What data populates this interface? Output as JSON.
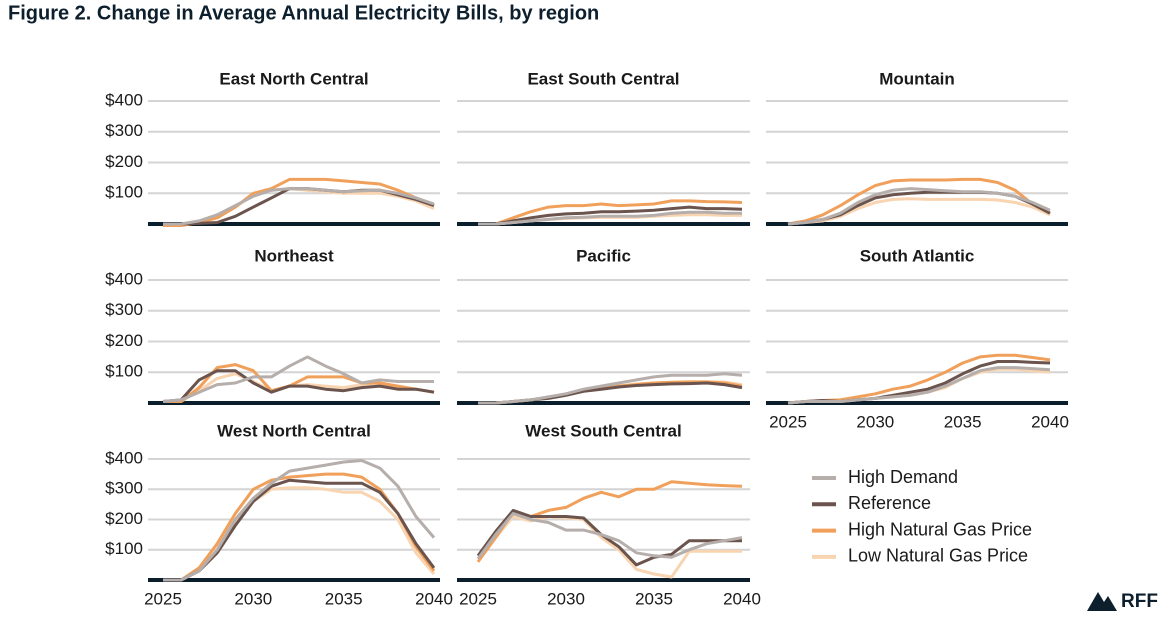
{
  "title": "Figure 2. Change in Average Annual Electricity Bills, by region",
  "logo": "RFF",
  "chart_data": [
    {
      "type": "line",
      "title": "East North Central",
      "x": [
        2025,
        2026,
        2027,
        2028,
        2029,
        2030,
        2031,
        2032,
        2033,
        2034,
        2035,
        2036,
        2037,
        2038,
        2039,
        2040
      ],
      "xlim": [
        2025,
        2040
      ],
      "ylim": [
        0,
        400
      ],
      "yticks": [
        {
          "value": 100,
          "label": "$100"
        },
        {
          "value": 200,
          "label": "$200"
        },
        {
          "value": 300,
          "label": "$300"
        },
        {
          "value": 400,
          "label": "$400"
        }
      ],
      "grid": true,
      "series": [
        {
          "name": "High Demand",
          "color": "#b5aeab",
          "values": [
            0,
            0,
            10,
            30,
            60,
            90,
            110,
            115,
            115,
            110,
            105,
            108,
            110,
            100,
            85,
            65
          ]
        },
        {
          "name": "Reference",
          "color": "#6b544d",
          "values": [
            0,
            0,
            2,
            5,
            25,
            55,
            85,
            115,
            115,
            110,
            105,
            110,
            110,
            95,
            80,
            60
          ]
        },
        {
          "name": "High Natural Gas Price",
          "color": "#f0a05a",
          "values": [
            -5,
            -5,
            5,
            20,
            55,
            100,
            115,
            145,
            145,
            145,
            140,
            135,
            130,
            110,
            85,
            60
          ]
        },
        {
          "name": "Low Natural Gas Price",
          "color": "#f8d4b0",
          "values": [
            0,
            0,
            5,
            20,
            55,
            95,
            110,
            115,
            110,
            105,
            100,
            100,
            100,
            90,
            75,
            50
          ]
        }
      ]
    },
    {
      "type": "line",
      "title": "East South Central",
      "x": [
        2025,
        2026,
        2027,
        2028,
        2029,
        2030,
        2031,
        2032,
        2033,
        2034,
        2035,
        2036,
        2037,
        2038,
        2039,
        2040
      ],
      "xlim": [
        2025,
        2040
      ],
      "ylim": [
        0,
        400
      ],
      "yticks": [
        100,
        200,
        300,
        400
      ],
      "grid": true,
      "series": [
        {
          "name": "High Demand",
          "color": "#b5aeab",
          "values": [
            0,
            0,
            5,
            10,
            15,
            20,
            22,
            25,
            25,
            25,
            28,
            35,
            38,
            38,
            35,
            35
          ]
        },
        {
          "name": "Reference",
          "color": "#6b544d",
          "values": [
            0,
            0,
            10,
            20,
            28,
            33,
            35,
            40,
            40,
            42,
            45,
            50,
            55,
            50,
            50,
            48
          ]
        },
        {
          "name": "High Natural Gas Price",
          "color": "#f0a05a",
          "values": [
            0,
            0,
            20,
            40,
            55,
            60,
            60,
            65,
            60,
            62,
            65,
            75,
            75,
            73,
            72,
            70
          ]
        },
        {
          "name": "Low Natural Gas Price",
          "color": "#f8d4b0",
          "values": [
            0,
            0,
            5,
            10,
            15,
            18,
            20,
            22,
            22,
            22,
            25,
            28,
            30,
            30,
            28,
            28
          ]
        }
      ]
    },
    {
      "type": "line",
      "title": "Mountain",
      "x": [
        2025,
        2026,
        2027,
        2028,
        2029,
        2030,
        2031,
        2032,
        2033,
        2034,
        2035,
        2036,
        2037,
        2038,
        2039,
        2040
      ],
      "xlim": [
        2025,
        2040
      ],
      "ylim": [
        0,
        400
      ],
      "yticks": [
        100,
        200,
        300,
        400
      ],
      "grid": true,
      "series": [
        {
          "name": "High Demand",
          "color": "#b5aeab",
          "values": [
            0,
            5,
            15,
            35,
            70,
            95,
            110,
            115,
            112,
            108,
            105,
            105,
            100,
            90,
            70,
            45
          ]
        },
        {
          "name": "Reference",
          "color": "#6b544d",
          "values": [
            0,
            5,
            15,
            30,
            60,
            85,
            95,
            100,
            103,
            103,
            103,
            103,
            100,
            90,
            65,
            35
          ]
        },
        {
          "name": "High Natural Gas Price",
          "color": "#f0a05a",
          "values": [
            0,
            10,
            30,
            60,
            95,
            125,
            140,
            143,
            143,
            143,
            145,
            145,
            135,
            110,
            65,
            35
          ]
        },
        {
          "name": "Low Natural Gas Price",
          "color": "#f8d4b0",
          "values": [
            0,
            5,
            10,
            25,
            50,
            70,
            80,
            82,
            80,
            80,
            80,
            80,
            78,
            70,
            55,
            30
          ]
        }
      ]
    },
    {
      "type": "line",
      "title": "Northeast",
      "x": [
        2025,
        2026,
        2027,
        2028,
        2029,
        2030,
        2031,
        2032,
        2033,
        2034,
        2035,
        2036,
        2037,
        2038,
        2039,
        2040
      ],
      "xlim": [
        2025,
        2040
      ],
      "ylim": [
        0,
        400
      ],
      "yticks": [
        {
          "value": 100,
          "label": "$100"
        },
        {
          "value": 200,
          "label": "$200"
        },
        {
          "value": 300,
          "label": "$300"
        },
        {
          "value": 400,
          "label": "$400"
        }
      ],
      "grid": true,
      "series": [
        {
          "name": "High Demand",
          "color": "#b5aeab",
          "values": [
            5,
            10,
            35,
            60,
            65,
            85,
            85,
            120,
            150,
            120,
            95,
            65,
            75,
            70,
            70,
            70
          ]
        },
        {
          "name": "Reference",
          "color": "#6b544d",
          "values": [
            5,
            10,
            75,
            105,
            105,
            65,
            35,
            55,
            55,
            45,
            40,
            50,
            55,
            45,
            45,
            35
          ]
        },
        {
          "name": "High Natural Gas Price",
          "color": "#f0a05a",
          "values": [
            5,
            5,
            50,
            115,
            125,
            105,
            40,
            55,
            85,
            85,
            85,
            65,
            65,
            55,
            45,
            35
          ]
        },
        {
          "name": "Low Natural Gas Price",
          "color": "#f8d4b0",
          "values": [
            5,
            5,
            40,
            80,
            95,
            70,
            40,
            55,
            60,
            55,
            50,
            60,
            60,
            50,
            45,
            35
          ]
        }
      ]
    },
    {
      "type": "line",
      "title": "Pacific",
      "x": [
        2025,
        2026,
        2027,
        2028,
        2029,
        2030,
        2031,
        2032,
        2033,
        2034,
        2035,
        2036,
        2037,
        2038,
        2039,
        2040
      ],
      "xlim": [
        2025,
        2040
      ],
      "ylim": [
        0,
        400
      ],
      "yticks": [
        100,
        200,
        300,
        400
      ],
      "grid": true,
      "series": [
        {
          "name": "High Demand",
          "color": "#b5aeab",
          "values": [
            0,
            0,
            5,
            10,
            20,
            30,
            45,
            55,
            65,
            75,
            85,
            90,
            90,
            90,
            95,
            90
          ]
        },
        {
          "name": "Reference",
          "color": "#6b544d",
          "values": [
            0,
            0,
            5,
            10,
            15,
            25,
            38,
            45,
            52,
            57,
            60,
            62,
            63,
            65,
            60,
            50
          ]
        },
        {
          "name": "High Natural Gas Price",
          "color": "#f0a05a",
          "values": [
            0,
            0,
            5,
            10,
            18,
            30,
            40,
            50,
            55,
            60,
            65,
            67,
            68,
            68,
            65,
            55
          ]
        },
        {
          "name": "Low Natural Gas Price",
          "color": "#f8d4b0",
          "values": [
            0,
            0,
            5,
            10,
            18,
            28,
            40,
            48,
            55,
            62,
            65,
            68,
            70,
            70,
            68,
            60
          ]
        }
      ]
    },
    {
      "type": "line",
      "title": "South Atlantic",
      "x": [
        2025,
        2026,
        2027,
        2028,
        2029,
        2030,
        2031,
        2032,
        2033,
        2034,
        2035,
        2036,
        2037,
        2038,
        2039,
        2040
      ],
      "xlim": [
        2025,
        2040
      ],
      "ylim": [
        0,
        400
      ],
      "xticks": [
        2025,
        2030,
        2035,
        2040
      ],
      "yticks": [
        100,
        200,
        300,
        400
      ],
      "grid": true,
      "series": [
        {
          "name": "High Demand",
          "color": "#b5aeab",
          "values": [
            0,
            5,
            5,
            5,
            10,
            15,
            20,
            25,
            35,
            55,
            80,
            105,
            115,
            115,
            112,
            108
          ]
        },
        {
          "name": "Reference",
          "color": "#6b544d",
          "values": [
            0,
            5,
            8,
            5,
            10,
            15,
            25,
            35,
            45,
            65,
            95,
            120,
            135,
            135,
            132,
            130
          ]
        },
        {
          "name": "High Natural Gas Price",
          "color": "#f0a05a",
          "values": [
            0,
            5,
            8,
            10,
            20,
            30,
            45,
            55,
            75,
            100,
            130,
            150,
            155,
            155,
            148,
            140
          ]
        },
        {
          "name": "Low Natural Gas Price",
          "color": "#f8d4b0",
          "values": [
            0,
            5,
            5,
            5,
            10,
            15,
            20,
            25,
            35,
            50,
            80,
            100,
            110,
            110,
            105,
            100
          ]
        }
      ]
    },
    {
      "type": "line",
      "title": "West North Central",
      "x": [
        2025,
        2026,
        2027,
        2028,
        2029,
        2030,
        2031,
        2032,
        2033,
        2034,
        2035,
        2036,
        2037,
        2038,
        2039,
        2040
      ],
      "xlim": [
        2025,
        2040
      ],
      "ylim": [
        0,
        400
      ],
      "xticks": [
        2025,
        2030,
        2035,
        2040
      ],
      "yticks": [
        {
          "value": 100,
          "label": "$100"
        },
        {
          "value": 200,
          "label": "$200"
        },
        {
          "value": 300,
          "label": "$300"
        },
        {
          "value": 400,
          "label": "$400"
        }
      ],
      "grid": true,
      "series": [
        {
          "name": "High Demand",
          "color": "#b5aeab",
          "values": [
            0,
            0,
            30,
            100,
            200,
            270,
            320,
            360,
            370,
            380,
            390,
            395,
            370,
            310,
            210,
            140
          ]
        },
        {
          "name": "Reference",
          "color": "#6b544d",
          "values": [
            0,
            0,
            30,
            90,
            180,
            260,
            310,
            330,
            325,
            320,
            320,
            320,
            290,
            220,
            120,
            40
          ]
        },
        {
          "name": "High Natural Gas Price",
          "color": "#f0a05a",
          "values": [
            0,
            0,
            40,
            120,
            220,
            300,
            330,
            340,
            345,
            350,
            350,
            340,
            300,
            220,
            110,
            30
          ]
        },
        {
          "name": "Low Natural Gas Price",
          "color": "#f8d4b0",
          "values": [
            0,
            0,
            30,
            100,
            190,
            260,
            300,
            305,
            305,
            300,
            290,
            290,
            260,
            200,
            90,
            20
          ]
        }
      ]
    },
    {
      "type": "line",
      "title": "West South Central",
      "x": [
        2025,
        2026,
        2027,
        2028,
        2029,
        2030,
        2031,
        2032,
        2033,
        2034,
        2035,
        2036,
        2037,
        2038,
        2039,
        2040
      ],
      "xlim": [
        2025,
        2040
      ],
      "ylim": [
        0,
        400
      ],
      "xticks": [
        2025,
        2030,
        2035,
        2040
      ],
      "yticks": [
        100,
        200,
        300,
        400
      ],
      "grid": true,
      "series": [
        {
          "name": "High Demand",
          "color": "#b5aeab",
          "values": [
            70,
            150,
            220,
            200,
            190,
            165,
            165,
            150,
            130,
            90,
            80,
            75,
            100,
            120,
            130,
            140
          ]
        },
        {
          "name": "Reference",
          "color": "#6b544d",
          "values": [
            80,
            160,
            230,
            210,
            210,
            210,
            205,
            150,
            110,
            50,
            75,
            85,
            130,
            130,
            130,
            130
          ]
        },
        {
          "name": "High Natural Gas Price",
          "color": "#f0a05a",
          "values": [
            60,
            140,
            225,
            210,
            230,
            240,
            270,
            290,
            275,
            300,
            300,
            325,
            320,
            315,
            312,
            310
          ]
        },
        {
          "name": "Low Natural Gas Price",
          "color": "#f8d4b0",
          "values": [
            70,
            140,
            210,
            195,
            210,
            205,
            200,
            140,
            100,
            35,
            20,
            10,
            95,
            95,
            95,
            95
          ]
        }
      ]
    }
  ]
}
